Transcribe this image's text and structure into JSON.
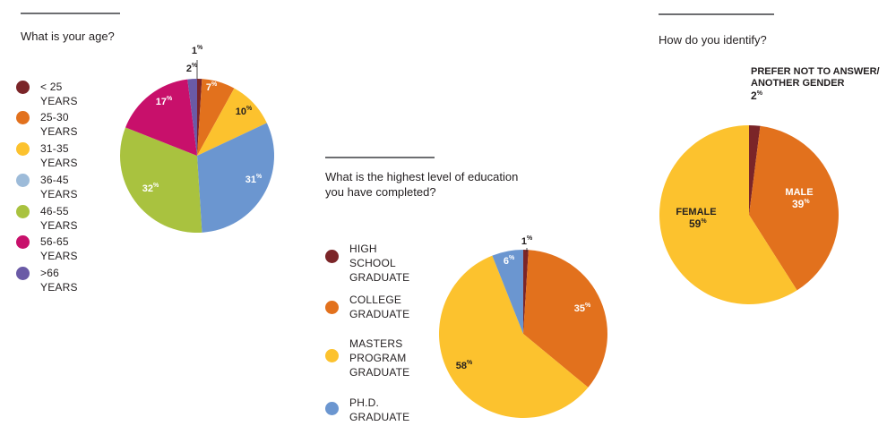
{
  "colors": {
    "dark_red": "#7b2528",
    "orange": "#e2711d",
    "yellow": "#fcc22e",
    "light_blue": "#9dbbd9",
    "blue": "#6b96d0",
    "green": "#a9c23f",
    "magenta": "#c8106b",
    "purple": "#6a5aa6"
  },
  "chart_data": [
    {
      "type": "pie",
      "title": "What is your age?",
      "categories": [
        "< 25 YEARS",
        "25-30 YEARS",
        "31-35 YEARS",
        "36-45 YEARS",
        "46-55 YEARS",
        "56-65 YEARS",
        ">66 YEARS"
      ],
      "legend_colors": [
        "#7b2528",
        "#e2711d",
        "#fcc22e",
        "#9dbbd9",
        "#a9c23f",
        "#c8106b",
        "#6a5aa6"
      ],
      "slices": [
        {
          "label": "1",
          "value": 1,
          "color": "#7b2528"
        },
        {
          "label": "7",
          "value": 7,
          "color": "#e2711d"
        },
        {
          "label": "10",
          "value": 10,
          "color": "#fcc22e"
        },
        {
          "label": "31",
          "value": 31,
          "color": "#6b96d0"
        },
        {
          "label": "32",
          "value": 32,
          "color": "#a9c23f"
        },
        {
          "label": "17",
          "value": 17,
          "color": "#c8106b"
        },
        {
          "label": "2",
          "value": 2,
          "color": "#6a5aa6"
        }
      ],
      "unit": "%",
      "legend_position": "left"
    },
    {
      "type": "pie",
      "title": "What is the highest level of education\nyou have completed?",
      "categories": [
        "HIGH SCHOOL\nGRADUATE",
        "COLLEGE\nGRADUATE",
        "MASTERS\nPROGRAM\nGRADUATE",
        "PH.D.\nGRADUATE"
      ],
      "legend_colors": [
        "#7b2528",
        "#e2711d",
        "#fcc22e",
        "#6b96d0"
      ],
      "slices": [
        {
          "label": "1",
          "value": 1,
          "color": "#7b2528"
        },
        {
          "label": "35",
          "value": 35,
          "color": "#e2711d"
        },
        {
          "label": "58",
          "value": 58,
          "color": "#fcc22e"
        },
        {
          "label": "6",
          "value": 6,
          "color": "#6b96d0"
        }
      ],
      "unit": "%",
      "legend_position": "left"
    },
    {
      "type": "pie",
      "title": "How do you identify?",
      "slices": [
        {
          "label": "PREFER NOT TO ANSWER/\nANOTHER GENDER",
          "pct": "2",
          "value": 2,
          "color": "#7b2528"
        },
        {
          "label": "MALE",
          "pct": "39",
          "value": 39,
          "color": "#e2711d"
        },
        {
          "label": "FEMALE",
          "pct": "59",
          "value": 59,
          "color": "#fcc22e"
        }
      ],
      "unit": "%",
      "legend_position": "none"
    }
  ]
}
